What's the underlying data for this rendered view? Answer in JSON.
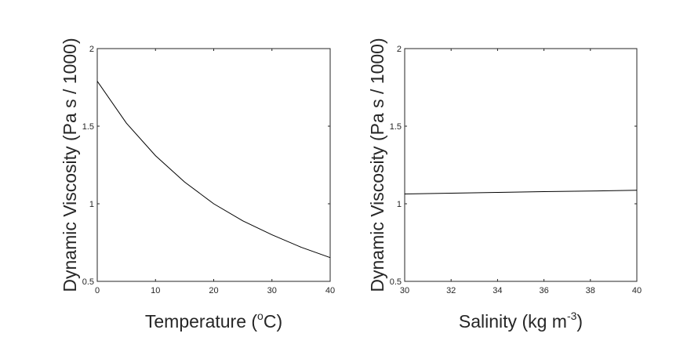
{
  "chart_data": [
    {
      "type": "line",
      "xlabel": {
        "pre": "Temperature (",
        "sup": "o",
        "post": "C)"
      },
      "ylabel": "Dynamic Viscosity (Pa s / 1000)",
      "xlim": [
        0,
        40
      ],
      "ylim": [
        0.5,
        2
      ],
      "xticks": [
        "0",
        "10",
        "20",
        "30",
        "40"
      ],
      "yticks": [
        "0.5",
        "1",
        "1.5",
        "2"
      ],
      "grid": false,
      "series": [
        {
          "x": [
            0,
            5,
            10,
            15,
            20,
            25,
            30,
            35,
            40
          ],
          "y": [
            1.79,
            1.52,
            1.31,
            1.14,
            1.0,
            0.89,
            0.8,
            0.72,
            0.653
          ],
          "color": "#000000"
        }
      ]
    },
    {
      "type": "line",
      "xlabel": {
        "pre": "Salinity (kg m",
        "sup": "-3",
        "post": ")"
      },
      "ylabel": "Dynamic Viscosity (Pa s / 1000)",
      "xlim": [
        30,
        40
      ],
      "ylim": [
        0.5,
        2
      ],
      "xticks": [
        "30",
        "32",
        "34",
        "36",
        "38",
        "40"
      ],
      "yticks": [
        "0.5",
        "1",
        "1.5",
        "2"
      ],
      "grid": false,
      "series": [
        {
          "x": [
            30,
            32,
            34,
            36,
            38,
            40
          ],
          "y": [
            1.063,
            1.068,
            1.073,
            1.078,
            1.082,
            1.087
          ],
          "color": "#000000"
        }
      ]
    }
  ]
}
